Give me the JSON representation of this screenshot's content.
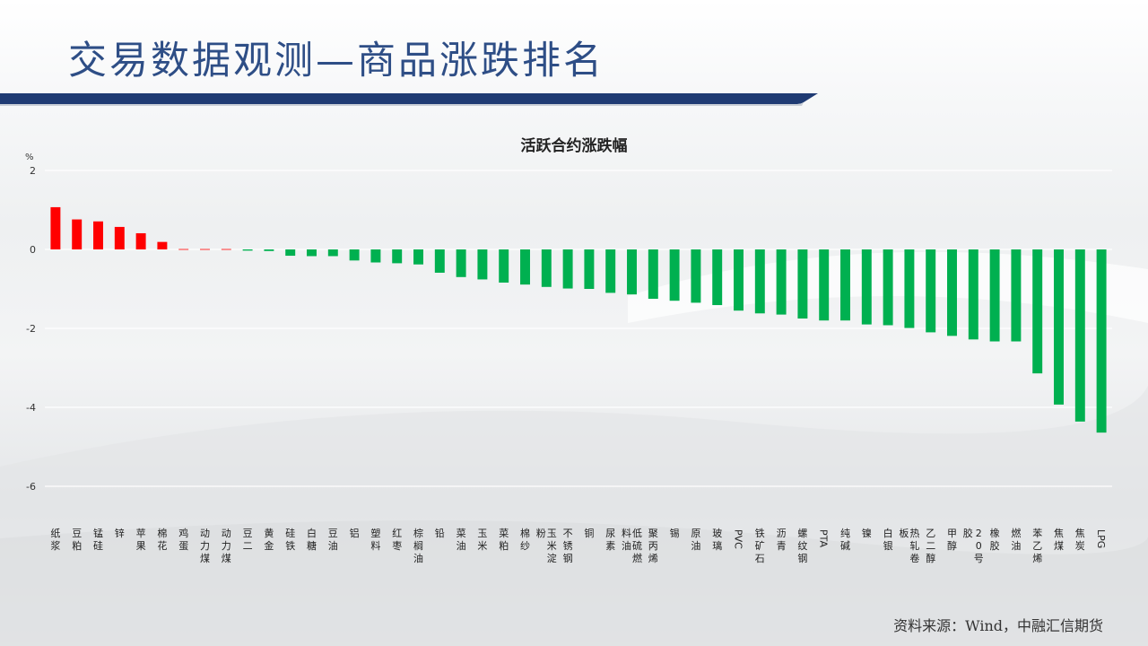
{
  "slide": {
    "title": "交易数据观测—商品涨跌排名",
    "source": "资料来源：Wind，中融汇信期货"
  },
  "colors": {
    "title": "#2e4e86",
    "band": "#1f3b73",
    "rise": "#ff0000",
    "fall": "#00b050"
  },
  "chart_data": {
    "type": "bar",
    "title": "活跃合约涨跌幅",
    "ylabel": "%",
    "ylim": [
      -6,
      2
    ],
    "yticks": [
      2,
      0,
      -2,
      -4,
      -6
    ],
    "grid": true,
    "legend": "none",
    "categories": [
      "纸浆",
      "豆粕",
      "锰硅",
      "锌",
      "苹果",
      "棉花",
      "鸡蛋",
      "动力煤",
      "动力煤",
      "豆二",
      "黄金",
      "硅铁",
      "白糖",
      "豆油",
      "铝",
      "塑料",
      "红枣",
      "棕榈油",
      "铅",
      "菜油",
      "玉米",
      "菜粕",
      "棉纱",
      "玉米淀粉",
      "不锈钢",
      "铜",
      "尿素",
      "低硫燃料油",
      "聚丙烯",
      "锡",
      "原油",
      "玻璃",
      "PVC",
      "铁矿石",
      "沥青",
      "螺纹钢",
      "PTA",
      "纯碱",
      "镍",
      "白银",
      "热轧卷板",
      "乙二醇",
      "甲醇",
      "20号胶",
      "橡胶",
      "燃油",
      "苯乙烯",
      "焦煤",
      "焦炭",
      "LPG"
    ],
    "values": [
      1.07,
      0.76,
      0.71,
      0.57,
      0.41,
      0.19,
      0.0,
      0.0,
      0.0,
      -0.03,
      -0.04,
      -0.16,
      -0.17,
      -0.17,
      -0.28,
      -0.33,
      -0.35,
      -0.38,
      -0.59,
      -0.7,
      -0.76,
      -0.84,
      -0.89,
      -0.95,
      -0.99,
      -1.0,
      -1.1,
      -1.14,
      -1.25,
      -1.3,
      -1.35,
      -1.41,
      -1.55,
      -1.62,
      -1.65,
      -1.75,
      -1.8,
      -1.8,
      -1.9,
      -1.92,
      -1.99,
      -2.1,
      -2.19,
      -2.28,
      -2.33,
      -2.33,
      -3.14,
      -3.93,
      -4.36,
      -4.64
    ]
  }
}
